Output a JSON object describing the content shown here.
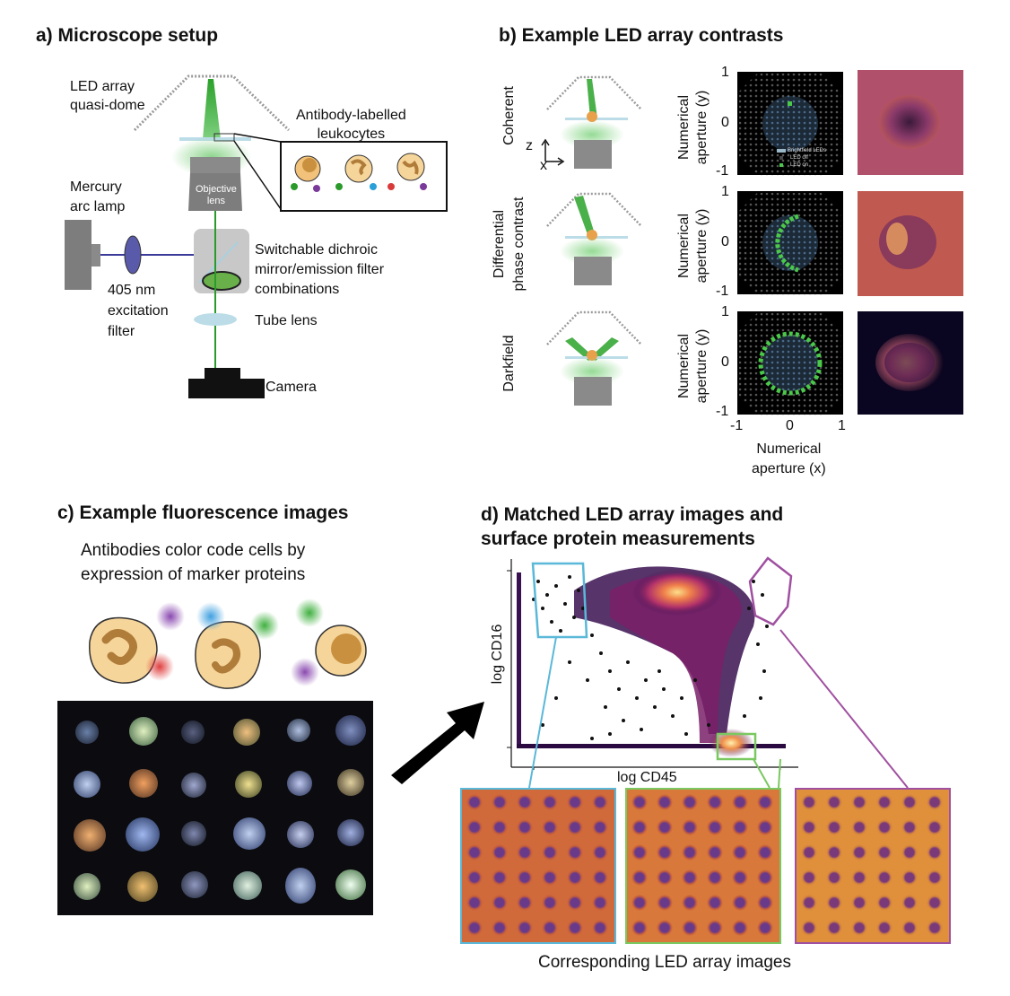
{
  "panel_a": {
    "title": "a) Microscope setup",
    "led_array": "LED array\nquasi-dome",
    "antibody": "Antibody-labelled\nleukocytes",
    "mercury": "Mercury\narc lamp",
    "objective": "Objective\nlens",
    "dichroic": "Switchable dichroic\nmirror/emission filter\ncombinations",
    "filter": "405 nm\nexcitation\nfilter",
    "tube": "Tube lens",
    "camera": "Camera"
  },
  "panel_b": {
    "title": "b) Example LED array contrasts",
    "rows": [
      {
        "label": "Coherent",
        "ticks_y": [
          "1",
          "0",
          "-1"
        ]
      },
      {
        "label": "Differential\nphase contrast",
        "ticks_y": [
          "1",
          "0",
          "-1"
        ]
      },
      {
        "label": "Darkfield",
        "ticks_y": [
          "1",
          "0",
          "-1"
        ]
      }
    ],
    "ylabel": "Numerical\naperture (y)",
    "xlabel": "Numerical\naperture (x)",
    "ticks_x": [
      "-1",
      "0",
      "1"
    ],
    "axis_z": "z",
    "axis_x": "x",
    "legend": [
      "Brightfield LEDs",
      "LED off",
      "LED on"
    ]
  },
  "panel_c": {
    "title": "c) Example fluorescence images",
    "subtitle": "Antibodies color code cells by\nexpression of marker proteins"
  },
  "panel_d": {
    "title": "d) Matched LED array images and\nsurface protein measurements",
    "xlabel": "log CD45",
    "ylabel": "log CD16",
    "caption": "Corresponding LED array images"
  }
}
